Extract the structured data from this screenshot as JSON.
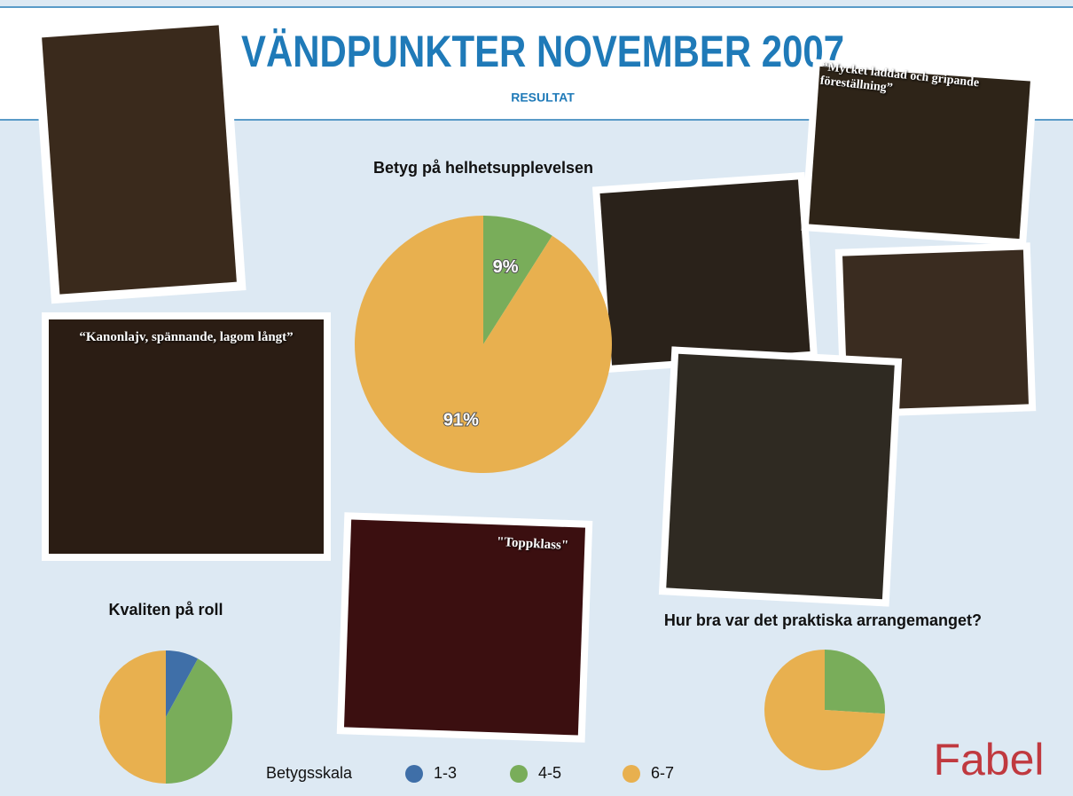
{
  "header": {
    "title": "VÄNDPUNKTER NOVEMBER 2007",
    "subtitle": "RESULTAT"
  },
  "chart_data": [
    {
      "type": "pie",
      "title": "Betyg på helhetsupplevelsen",
      "categories": [
        "4-5",
        "6-7"
      ],
      "values": [
        9,
        91
      ],
      "value_labels": [
        "9%",
        "91%"
      ],
      "colors": [
        "#79ad5a",
        "#e8b04f"
      ]
    },
    {
      "type": "pie",
      "title": "Kvaliten på roll",
      "categories": [
        "1-3",
        "4-5",
        "6-7"
      ],
      "values": [
        8,
        42,
        50
      ],
      "colors": [
        "#3f6fa8",
        "#79ad5a",
        "#e8b04f"
      ]
    },
    {
      "type": "pie",
      "title": "Hur bra var det praktiska arrangemanget?",
      "categories": [
        "4-5",
        "6-7"
      ],
      "values": [
        26,
        74
      ],
      "colors": [
        "#79ad5a",
        "#e8b04f"
      ]
    }
  ],
  "legend": {
    "title": "Betygsskala",
    "items": [
      {
        "label": "1-3",
        "color": "#3f6fa8"
      },
      {
        "label": "4-5",
        "color": "#79ad5a"
      },
      {
        "label": "6-7",
        "color": "#e8b04f"
      }
    ]
  },
  "captions": [
    "“Kanonlajv, spännande, lagom långt”",
    "“Mycket laddad och gripande föreställning”",
    "\"Toppklass\""
  ],
  "logo": "Fabel"
}
